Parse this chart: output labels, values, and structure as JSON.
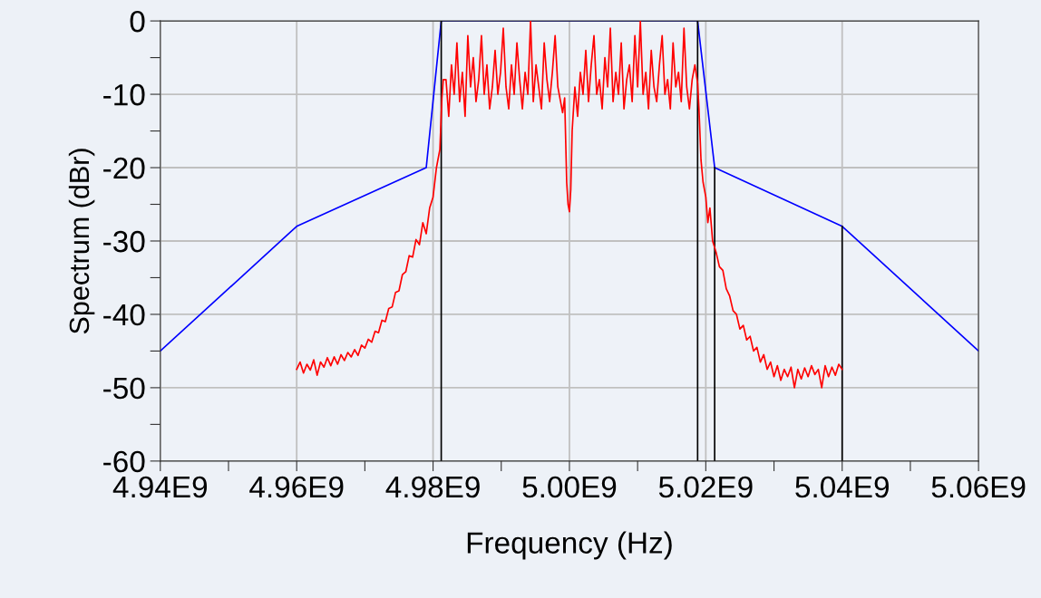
{
  "chart_data": {
    "type": "line",
    "xlabel": "Frequency (Hz)",
    "ylabel": "Spectrum (dBr)",
    "xlim": [
      4940000000.0,
      5060000000.0
    ],
    "ylim": [
      -60,
      0
    ],
    "xticks": [
      {
        "value": 4940000000.0,
        "label": "4.94E9"
      },
      {
        "value": 4950000000.0,
        "label": null
      },
      {
        "value": 4960000000.0,
        "label": "4.96E9"
      },
      {
        "value": 4970000000.0,
        "label": null
      },
      {
        "value": 4980000000.0,
        "label": "4.98E9"
      },
      {
        "value": 4990000000.0,
        "label": null
      },
      {
        "value": 5000000000.0,
        "label": "5.00E9"
      },
      {
        "value": 5010000000.0,
        "label": null
      },
      {
        "value": 5020000000.0,
        "label": "5.02E9"
      },
      {
        "value": 5030000000.0,
        "label": null
      },
      {
        "value": 5040000000.0,
        "label": "5.04E9"
      },
      {
        "value": 5050000000.0,
        "label": null
      },
      {
        "value": 5060000000.0,
        "label": "5.06E9"
      }
    ],
    "yticks": [
      -60,
      {
        "value": -55,
        "label": null
      },
      -50,
      {
        "value": -45,
        "label": null
      },
      -40,
      {
        "value": -35,
        "label": null
      },
      -30,
      {
        "value": -25,
        "label": null
      },
      -20,
      {
        "value": -15,
        "label": null
      },
      -10,
      {
        "value": -5,
        "label": null
      },
      0
    ],
    "grid": true,
    "line_style": "solid",
    "marker": "none",
    "series": [
      {
        "color": "#0000ff",
        "x": [
          4940000000.0,
          4960000000.0,
          4979000000.0,
          4981200000.0,
          5018800000.0,
          5021300000.0,
          5040000000.0,
          5060000000.0
        ],
        "values": [
          -45,
          -28,
          -20,
          0,
          0,
          -20,
          -28,
          -45
        ]
      },
      {
        "color": "#000000",
        "x": [
          4981200000.0,
          4981200000.0
        ],
        "values": [
          -60,
          0
        ]
      },
      {
        "color": "#000000",
        "x": [
          5018800000.0,
          5018800000.0
        ],
        "values": [
          -60,
          0
        ]
      },
      {
        "color": "#000000",
        "x": [
          5021300000.0,
          5021300000.0
        ],
        "values": [
          -60,
          -20
        ]
      },
      {
        "color": "#000000",
        "x": [
          5040000000.0,
          5040000000.0
        ],
        "values": [
          -60,
          -28
        ]
      },
      {
        "color": "#ff0000",
        "x": [
          4960000000.0,
          4960500000.0,
          4961000000.0,
          4961500000.0,
          4962000000.0,
          4962500000.0,
          4963000000.0,
          4963500000.0,
          4964000000.0,
          4964500000.0,
          4965000000.0,
          4965500000.0,
          4966000000.0,
          4966500000.0,
          4967000000.0,
          4967500000.0,
          4968000000.0,
          4968500000.0,
          4969000000.0,
          4969500000.0,
          4970000000.0,
          4970500000.0,
          4971000000.0,
          4971500000.0,
          4972000000.0,
          4972500000.0,
          4973000000.0,
          4973500000.0,
          4974000000.0,
          4974500000.0,
          4975000000.0,
          4975500000.0,
          4976000000.0,
          4976500000.0,
          4977000000.0,
          4977500000.0,
          4978000000.0,
          4978500000.0,
          4979000000.0,
          4979500000.0,
          4980000000.0,
          4980500000.0,
          4981000000.0,
          4981300000.0,
          4981500000.0,
          4981900000.0,
          4982300000.0,
          4982700000.0,
          4983100000.0,
          4983500000.0,
          4983900000.0,
          4984300000.0,
          4984700000.0,
          4985100000.0,
          4985500000.0,
          4985900000.0,
          4986300000.0,
          4986700000.0,
          4987100000.0,
          4987500000.0,
          4987900000.0,
          4988300000.0,
          4988700000.0,
          4989100000.0,
          4989500000.0,
          4989900000.0,
          4990300000.0,
          4990700000.0,
          4991100000.0,
          4991500000.0,
          4991900000.0,
          4992300000.0,
          4992700000.0,
          4993100000.0,
          4993500000.0,
          4993900000.0,
          4994300000.0,
          4994700000.0,
          4995100000.0,
          4995500000.0,
          4995900000.0,
          4996300000.0,
          4996700000.0,
          4997100000.0,
          4997500000.0,
          4997900000.0,
          4998300000.0,
          4998700000.0,
          4999000000.0,
          4999300000.0,
          4999600000.0,
          4999800000.0,
          5000000000.0,
          5000200000.0,
          5000400000.0,
          5000800000.0,
          5001200000.0,
          5001600000.0,
          5002000000.0,
          5002400000.0,
          5002800000.0,
          5003200000.0,
          5003600000.0,
          5004000000.0,
          5004400000.0,
          5004800000.0,
          5005200000.0,
          5005600000.0,
          5006000000.0,
          5006400000.0,
          5006800000.0,
          5007200000.0,
          5007600000.0,
          5008000000.0,
          5008400000.0,
          5008800000.0,
          5009200000.0,
          5009600000.0,
          5010000000.0,
          5010400000.0,
          5010800000.0,
          5011200000.0,
          5011600000.0,
          5012000000.0,
          5012400000.0,
          5012800000.0,
          5013200000.0,
          5013600000.0,
          5014000000.0,
          5014400000.0,
          5014800000.0,
          5015200000.0,
          5015600000.0,
          5016000000.0,
          5016400000.0,
          5016800000.0,
          5017200000.0,
          5017600000.0,
          5018000000.0,
          5018400000.0,
          5018800000.0,
          5019000000.0,
          5019300000.0,
          5019600000.0,
          5020000000.0,
          5020300000.0,
          5020600000.0,
          5021000000.0,
          5021500000.0,
          5022000000.0,
          5022500000.0,
          5023000000.0,
          5023500000.0,
          5024000000.0,
          5024500000.0,
          5025000000.0,
          5025500000.0,
          5026000000.0,
          5026500000.0,
          5027000000.0,
          5027500000.0,
          5028000000.0,
          5028500000.0,
          5029000000.0,
          5029500000.0,
          5030000000.0,
          5030500000.0,
          5031000000.0,
          5031500000.0,
          5032000000.0,
          5032500000.0,
          5033000000.0,
          5033500000.0,
          5034000000.0,
          5034500000.0,
          5035000000.0,
          5035500000.0,
          5036000000.0,
          5036500000.0,
          5037000000.0,
          5037500000.0,
          5038000000.0,
          5038500000.0,
          5039000000.0,
          5039500000.0,
          5040000000.0
        ],
        "values": [
          -47.5,
          -46.5,
          -48,
          -46.8,
          -47.6,
          -46.2,
          -48.3,
          -46.5,
          -47.2,
          -45.9,
          -47,
          -45.8,
          -46.8,
          -45.5,
          -46.3,
          -45.2,
          -45.8,
          -44.8,
          -45.6,
          -44.2,
          -44.6,
          -43.4,
          -43.8,
          -42.3,
          -42.5,
          -40.8,
          -41,
          -39.2,
          -39,
          -37,
          -36.8,
          -34.6,
          -34.2,
          -32,
          -32.2,
          -29.8,
          -30.5,
          -27.5,
          -29,
          -25.5,
          -24,
          -20,
          -17.5,
          -10.5,
          -8,
          -8,
          -13,
          -6,
          -10,
          -3,
          -11,
          -7,
          -13,
          -2,
          -9,
          -5,
          -11,
          -8,
          -2,
          -10,
          -6,
          -12,
          -9,
          -4,
          -10,
          -7,
          -1,
          -9,
          -12,
          -6,
          -10,
          -3,
          -8,
          -12,
          -7,
          -10,
          0,
          -11,
          -6,
          -9,
          -12,
          -3,
          -8,
          -11,
          -7,
          -2,
          -9,
          -11,
          -12.5,
          -10.5,
          -22,
          -25,
          -26,
          -23,
          -15,
          -9,
          -13,
          -7,
          -10,
          -4,
          -11,
          -6,
          -2,
          -10,
          -8,
          -12,
          -5,
          -9,
          -1,
          -11,
          -7,
          -10,
          -3,
          -12,
          -8,
          -6,
          -11,
          -2,
          -9,
          0,
          -10,
          -7,
          -12,
          -4,
          -9,
          -11,
          -6,
          -2,
          -10,
          -8,
          -12,
          -3,
          -9,
          -7,
          -11,
          -1,
          -9,
          -12,
          -8,
          -6,
          -8.5,
          -12,
          -19,
          -22,
          -24,
          -27.5,
          -25.5,
          -30,
          -31.5,
          -33.5,
          -34,
          -36.5,
          -37.5,
          -39.5,
          -40,
          -42,
          -41.5,
          -43.5,
          -43,
          -45,
          -44.5,
          -46.5,
          -45.5,
          -47.5,
          -46.5,
          -48.5,
          -47,
          -49,
          -47.5,
          -48.5,
          -47.2,
          -50,
          -47.5,
          -48.8,
          -47.3,
          -48.5,
          -47,
          -48.2,
          -47.5,
          -50,
          -47,
          -48.5,
          -47.2,
          -48.3,
          -46.8,
          -47.5
        ]
      }
    ]
  }
}
